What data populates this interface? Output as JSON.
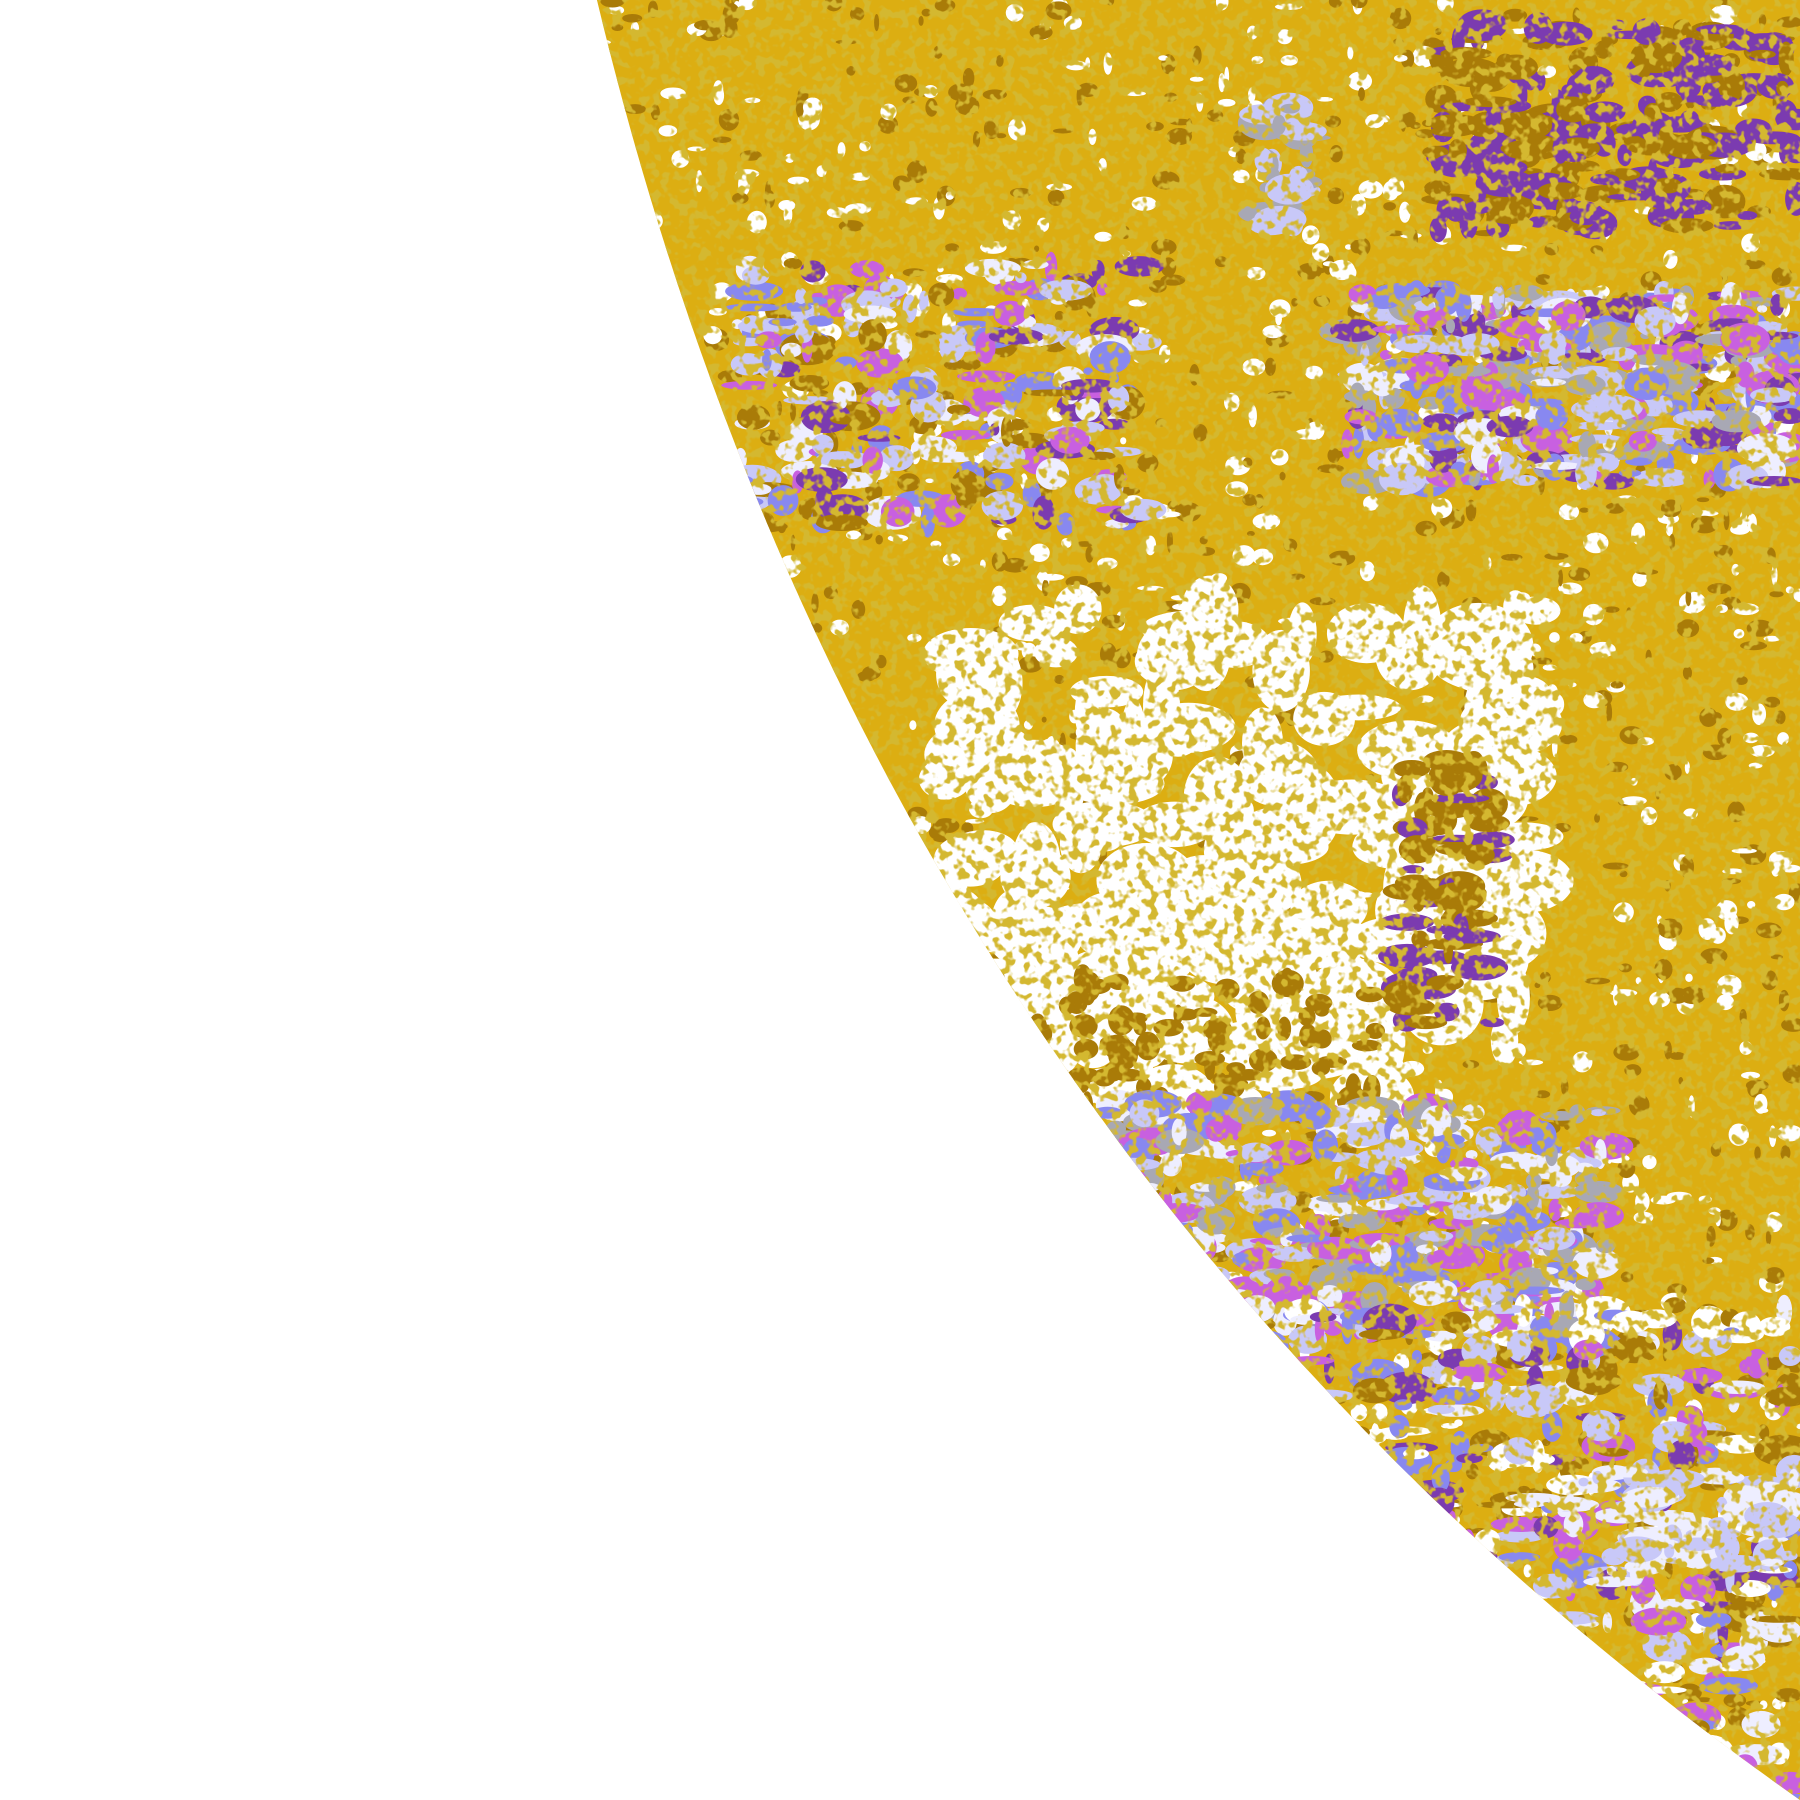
{
  "map": {
    "kind": "satellite cloud classification imagery (partial earth disc)",
    "background_color": "#ffffff",
    "palette": {
      "base_gold": "#dcae12",
      "dark_gold": "#a97b08",
      "purple": "#7b3bb0",
      "magenta": "#c860e0",
      "lavender": "#8888f0",
      "pale_blue": "#c8c8f8",
      "near_white": "#eeeeff",
      "gray": "#a8a8b4",
      "clear": "#ffffff"
    }
  }
}
